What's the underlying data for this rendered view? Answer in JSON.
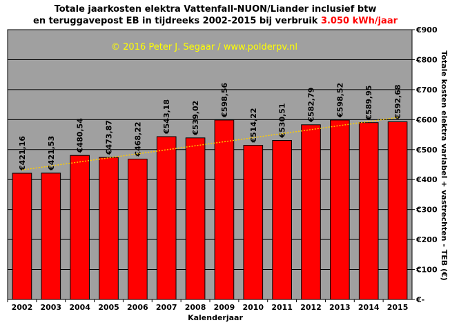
{
  "chart_data": {
    "type": "bar",
    "title_line1": "Totale jaarkosten elektra Vattenfall-NUON/Liander  inclusief btw",
    "title_line2": "en teruggavepost EB in tijdreeks  2002-2015 bij verbruik ",
    "title_highlight": "3.050 kWh/jaar",
    "copyright": "© 2016 Peter J. Segaar / www.polderpv.nl",
    "xlabel": "Kalenderjaar",
    "ylabel": "Totale kosten elektra variabel + vastrechten - TEB (€)",
    "categories": [
      "2002",
      "2003",
      "2004",
      "2005",
      "2006",
      "2007",
      "2008",
      "2009",
      "2010",
      "2011",
      "2012",
      "2013",
      "2014",
      "2015"
    ],
    "values": [
      421.16,
      421.53,
      480.54,
      473.87,
      468.22,
      543.18,
      539.02,
      598.56,
      514.22,
      530.51,
      582.79,
      598.52,
      589.95,
      592.68
    ],
    "data_labels": [
      "€421,16",
      "€421,53",
      "€480,54",
      "€473,87",
      "€468,22",
      "€543,18",
      "€539,02",
      "€598,56",
      "€514,22",
      "€530,51",
      "€582,79",
      "€598,52",
      "€589,95",
      "€592,68"
    ],
    "ylim": [
      0,
      900
    ],
    "yticks": [
      0,
      100,
      200,
      300,
      400,
      500,
      600,
      700,
      800,
      900
    ],
    "ytick_labels": [
      "€-",
      "€100",
      "€200",
      "€300",
      "€400",
      "€500",
      "€600",
      "€700",
      "€800",
      "€900"
    ],
    "trendline": {
      "style": "dotted",
      "from": 432,
      "to": 607
    },
    "grid": true,
    "legend": "none",
    "colors": {
      "bar": "#ff0000",
      "plot_bg": "#a0a0a0",
      "grid": "#000000",
      "trend": "#ffcc00",
      "copyright": "#ffff00",
      "highlight": "#ff0000"
    }
  }
}
